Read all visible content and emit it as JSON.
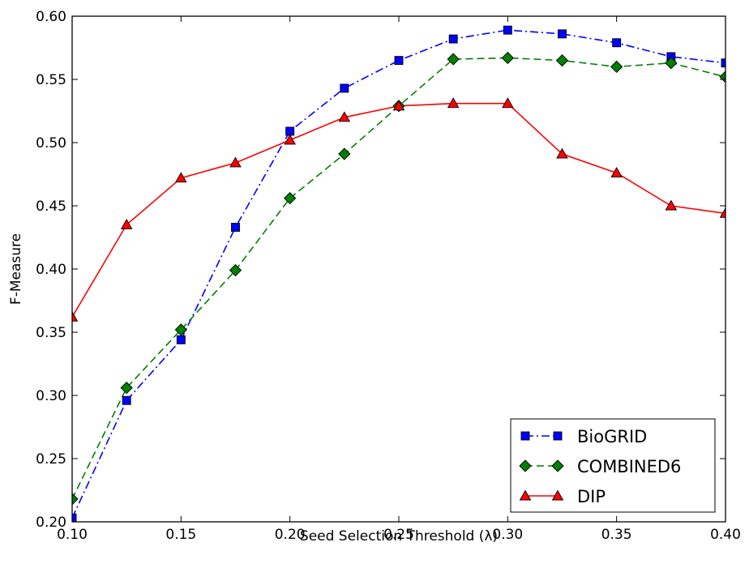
{
  "chart_data": {
    "type": "line",
    "xlabel": "Seed Selection Threshold (λ)",
    "ylabel": "F-Measure",
    "xlim": [
      0.1,
      0.4
    ],
    "ylim": [
      0.2,
      0.6
    ],
    "x_ticks": [
      "0.10",
      "0.15",
      "0.20",
      "0.25",
      "0.30",
      "0.35",
      "0.40"
    ],
    "y_ticks": [
      "0.20",
      "0.25",
      "0.30",
      "0.35",
      "0.40",
      "0.45",
      "0.50",
      "0.55",
      "0.60"
    ],
    "grid": false,
    "legend_position": "bottom-right",
    "x": [
      0.1,
      0.125,
      0.15,
      0.175,
      0.2,
      0.225,
      0.25,
      0.275,
      0.3,
      0.325,
      0.35,
      0.375,
      0.4
    ],
    "series": [
      {
        "name": "BioGRID",
        "color": "#0000ff",
        "marker": "square",
        "line_style": "dash-dot",
        "values": [
          0.203,
          0.296,
          0.344,
          0.433,
          0.509,
          0.543,
          0.565,
          0.582,
          0.589,
          0.586,
          0.579,
          0.568,
          0.563
        ]
      },
      {
        "name": "COMBINED6",
        "color": "#007f00",
        "marker": "diamond",
        "line_style": "dashed",
        "values": [
          0.218,
          0.306,
          0.352,
          0.399,
          0.456,
          0.491,
          0.529,
          0.566,
          0.567,
          0.565,
          0.56,
          0.563,
          0.552
        ]
      },
      {
        "name": "DIP",
        "color": "#ff0000",
        "marker": "triangle",
        "line_style": "solid",
        "values": [
          0.362,
          0.435,
          0.472,
          0.484,
          0.502,
          0.52,
          0.529,
          0.531,
          0.531,
          0.491,
          0.476,
          0.45,
          0.444
        ]
      }
    ]
  }
}
